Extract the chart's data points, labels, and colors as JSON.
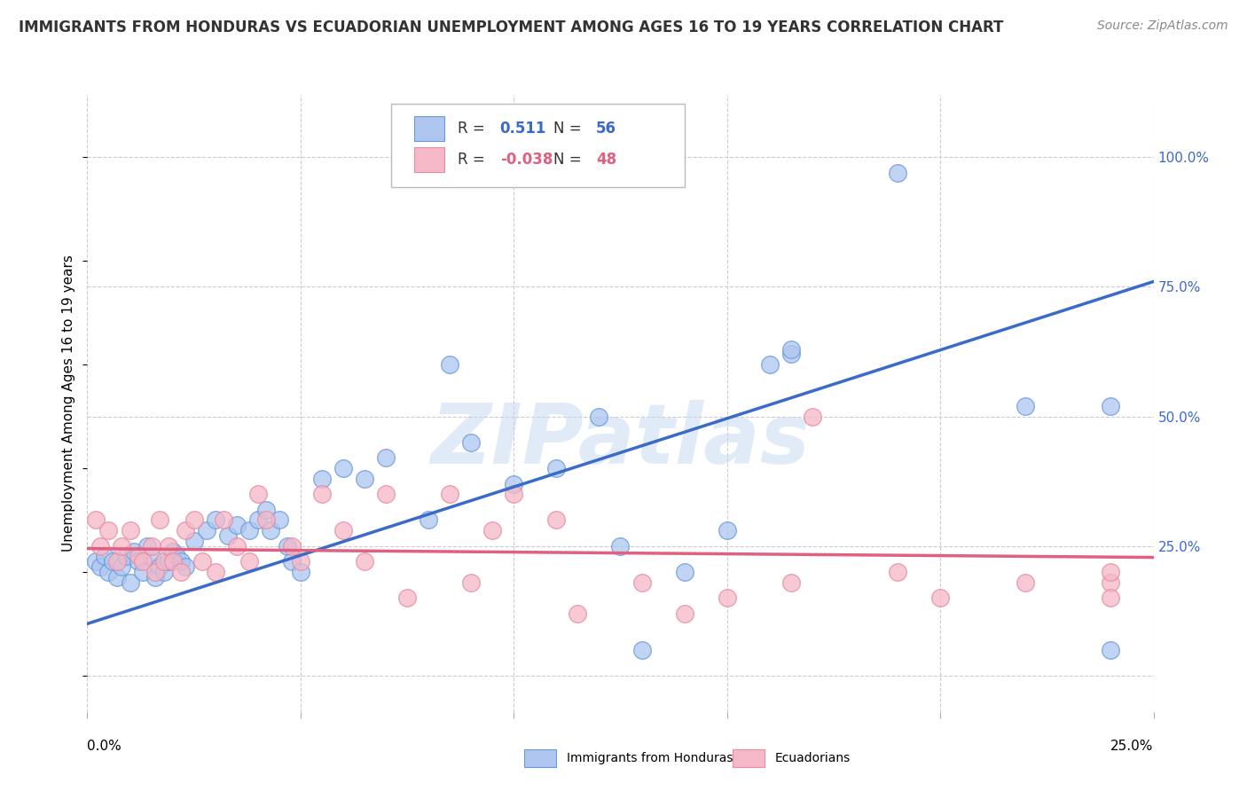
{
  "title": "IMMIGRANTS FROM HONDURAS VS ECUADORIAN UNEMPLOYMENT AMONG AGES 16 TO 19 YEARS CORRELATION CHART",
  "source": "Source: ZipAtlas.com",
  "ylabel": "Unemployment Among Ages 16 to 19 years",
  "legend_label1": "Immigrants from Honduras",
  "legend_label2": "Ecuadorians",
  "blue_color": "#aec6f0",
  "blue_edge_color": "#6699dd",
  "blue_line_color": "#3a6bc8",
  "pink_color": "#f5b8c8",
  "pink_edge_color": "#e88aa0",
  "pink_line_color": "#e06080",
  "r_blue": "0.511",
  "n_blue": "56",
  "r_pink": "-0.038",
  "n_pink": "48",
  "r_value_color": "#3a6bc8",
  "n_value_color": "#3a6bc8",
  "pink_r_value_color": "#e06080",
  "pink_n_value_color": "#e06080",
  "watermark_color": "#c5d8f0",
  "grid_color": "#cccccc",
  "bg_color": "#ffffff",
  "xlim": [
    0.0,
    0.25
  ],
  "ylim": [
    -0.07,
    1.12
  ],
  "yticks": [
    0.0,
    0.25,
    0.5,
    0.75,
    1.0
  ],
  "ytick_labels": [
    "",
    "25.0%",
    "50.0%",
    "75.0%",
    "100.0%"
  ],
  "blue_line_x": [
    0.0,
    0.25
  ],
  "blue_line_y": [
    0.1,
    0.76
  ],
  "pink_line_x": [
    0.0,
    0.25
  ],
  "pink_line_y": [
    0.245,
    0.228
  ],
  "blue_scatter_x": [
    0.002,
    0.003,
    0.004,
    0.005,
    0.006,
    0.007,
    0.008,
    0.009,
    0.01,
    0.011,
    0.012,
    0.013,
    0.014,
    0.015,
    0.016,
    0.017,
    0.018,
    0.019,
    0.02,
    0.021,
    0.022,
    0.023,
    0.025,
    0.028,
    0.03,
    0.033,
    0.035,
    0.038,
    0.04,
    0.042,
    0.043,
    0.045,
    0.047,
    0.048,
    0.05,
    0.055,
    0.06,
    0.065,
    0.07,
    0.08,
    0.085,
    0.09,
    0.1,
    0.11,
    0.12,
    0.125,
    0.14,
    0.15,
    0.16,
    0.165,
    0.165,
    0.19,
    0.22,
    0.24,
    0.24,
    0.13
  ],
  "blue_scatter_y": [
    0.22,
    0.21,
    0.23,
    0.2,
    0.22,
    0.19,
    0.21,
    0.23,
    0.18,
    0.24,
    0.22,
    0.2,
    0.25,
    0.23,
    0.19,
    0.21,
    0.2,
    0.22,
    0.24,
    0.23,
    0.22,
    0.21,
    0.26,
    0.28,
    0.3,
    0.27,
    0.29,
    0.28,
    0.3,
    0.32,
    0.28,
    0.3,
    0.25,
    0.22,
    0.2,
    0.38,
    0.4,
    0.38,
    0.42,
    0.3,
    0.6,
    0.45,
    0.37,
    0.4,
    0.5,
    0.25,
    0.2,
    0.28,
    0.6,
    0.62,
    0.63,
    0.97,
    0.52,
    0.52,
    0.05,
    0.05
  ],
  "pink_scatter_x": [
    0.002,
    0.003,
    0.005,
    0.007,
    0.008,
    0.01,
    0.012,
    0.013,
    0.015,
    0.016,
    0.017,
    0.018,
    0.019,
    0.02,
    0.022,
    0.023,
    0.025,
    0.027,
    0.03,
    0.032,
    0.035,
    0.038,
    0.04,
    0.042,
    0.048,
    0.055,
    0.06,
    0.065,
    0.07,
    0.075,
    0.085,
    0.09,
    0.095,
    0.1,
    0.11,
    0.115,
    0.13,
    0.14,
    0.15,
    0.165,
    0.17,
    0.19,
    0.2,
    0.22,
    0.24,
    0.24,
    0.24,
    0.05
  ],
  "pink_scatter_y": [
    0.3,
    0.25,
    0.28,
    0.22,
    0.25,
    0.28,
    0.23,
    0.22,
    0.25,
    0.2,
    0.3,
    0.22,
    0.25,
    0.22,
    0.2,
    0.28,
    0.3,
    0.22,
    0.2,
    0.3,
    0.25,
    0.22,
    0.35,
    0.3,
    0.25,
    0.35,
    0.28,
    0.22,
    0.35,
    0.15,
    0.35,
    0.18,
    0.28,
    0.35,
    0.3,
    0.12,
    0.18,
    0.12,
    0.15,
    0.18,
    0.5,
    0.2,
    0.15,
    0.18,
    0.18,
    0.2,
    0.15,
    0.22
  ],
  "title_fontsize": 12,
  "source_fontsize": 10,
  "axis_label_fontsize": 11,
  "tick_fontsize": 11,
  "legend_fontsize": 12,
  "watermark_fontsize": 68
}
